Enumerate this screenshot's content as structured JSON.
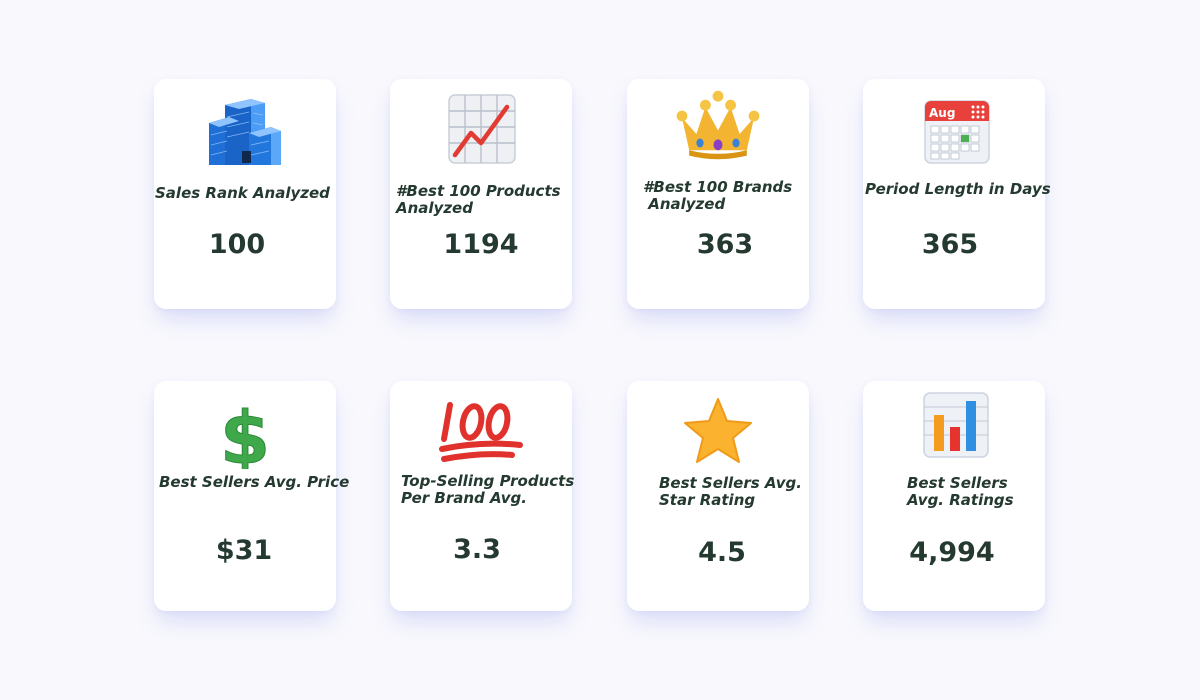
{
  "stats": [
    {
      "label": "Sales Rank Analyzed",
      "value": "100",
      "icon": "office-building-icon"
    },
    {
      "label": "#Best 100 Products\nAnalyzed",
      "value": "1194",
      "icon": "chart-increasing-icon"
    },
    {
      "label": "#Best 100 Brands\n Analyzed",
      "value": "363",
      "icon": "crown-icon"
    },
    {
      "label": "Period Length in Days",
      "value": "365",
      "icon": "calendar-icon",
      "calendar_month": "Aug"
    },
    {
      "label": "Best Sellers Avg. Price",
      "value": "$31",
      "icon": "dollar-sign-icon"
    },
    {
      "label": "Top-Selling Products\nPer Brand Avg.",
      "value": "3.3",
      "icon": "hundred-points-icon"
    },
    {
      "label": "Best Sellers Avg.\nStar Rating",
      "value": "4.5",
      "icon": "star-icon"
    },
    {
      "label": "Best Sellers\nAvg. Ratings",
      "value": "4,994",
      "icon": "bar-chart-icon"
    }
  ],
  "colors": {
    "background": "#f8f8fd",
    "card": "#ffffff",
    "text": "#24392f",
    "shadow": "#8c96eb"
  }
}
